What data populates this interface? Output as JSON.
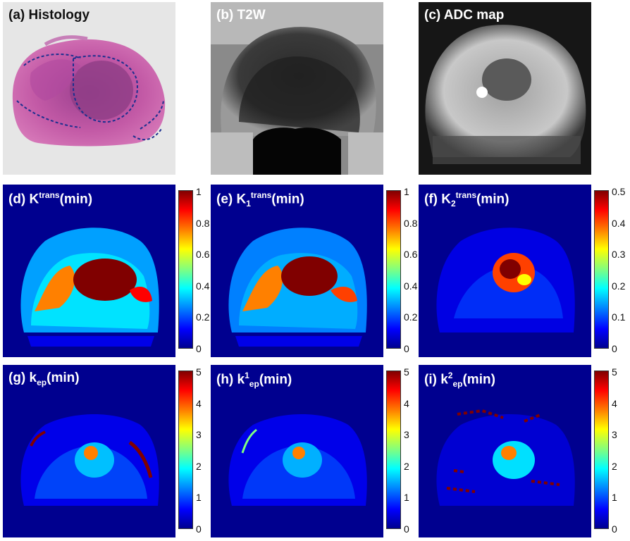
{
  "panels": {
    "a": {
      "label": "(a) Histology"
    },
    "b": {
      "label": "(b) T2W"
    },
    "c": {
      "label": "(c) ADC map"
    },
    "d": {
      "label_pre": "(d) K",
      "label_sup": "trans",
      "label_post": "(min)"
    },
    "e": {
      "label_pre": "(e) K",
      "label_sub": "1",
      "label_sup": "trans",
      "label_post": "(min)"
    },
    "f": {
      "label_pre": "(f) K",
      "label_sub": "2",
      "label_sup": "trans",
      "label_post": "(min)"
    },
    "g": {
      "label_pre": "(g) k",
      "label_sub": "ep",
      "label_post": "(min)"
    },
    "h": {
      "label_pre": "(h) k",
      "label_sup": "1",
      "label_sub": "ep",
      "label_post": "(min)"
    },
    "i": {
      "label_pre": "(i) k",
      "label_sup": "2",
      "label_sub": "ep",
      "label_post": "(min)"
    }
  },
  "colorbars": {
    "d": [
      "1",
      "0.8",
      "0.6",
      "0.4",
      "0.2",
      "0"
    ],
    "e": [
      "1",
      "0.8",
      "0.6",
      "0.4",
      "0.2",
      "0"
    ],
    "f": [
      "0.5",
      "0.4",
      "0.3",
      "0.2",
      "0.1",
      "0"
    ],
    "g": [
      "5",
      "4",
      "3",
      "2",
      "1",
      "0"
    ],
    "h": [
      "5",
      "4",
      "3",
      "2",
      "1",
      "0"
    ],
    "i": [
      "5",
      "4",
      "3",
      "2",
      "1",
      "0"
    ]
  },
  "colors": {
    "map_background": "#00008f",
    "colormap": "jet"
  }
}
